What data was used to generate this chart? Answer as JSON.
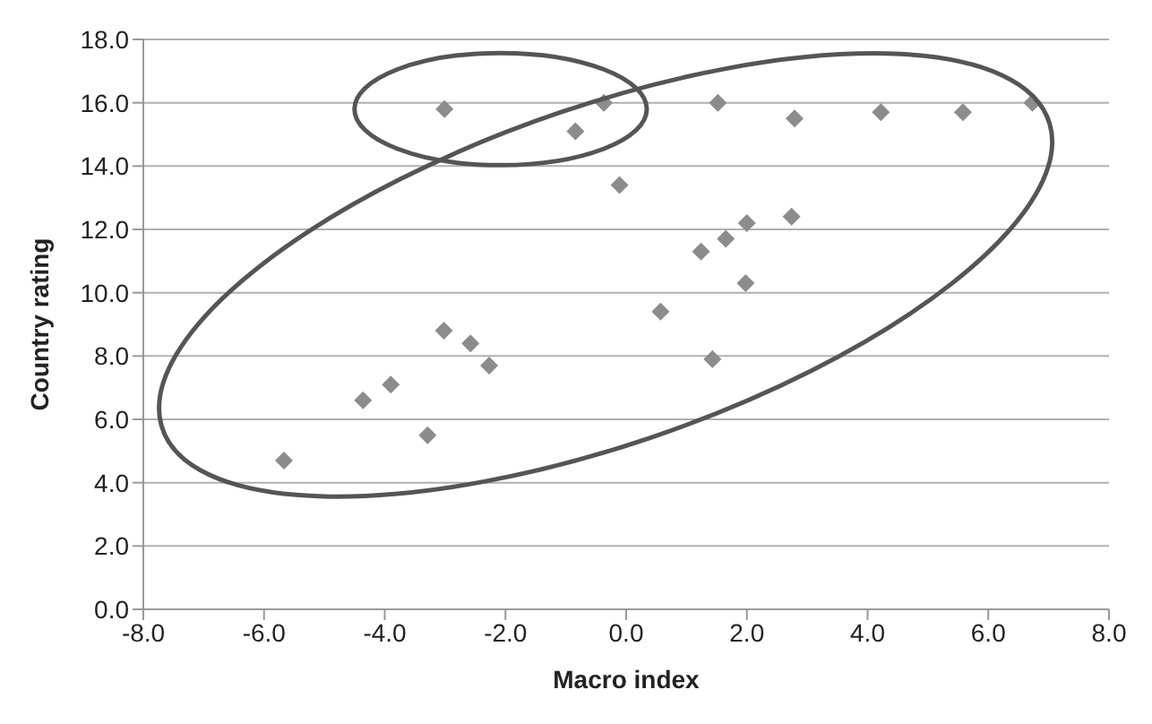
{
  "chart_data": {
    "type": "scatter",
    "xlabel": "Macro index",
    "ylabel": "Country rating",
    "xlim": [
      -8,
      8
    ],
    "ylim": [
      0,
      18
    ],
    "xticks": [
      {
        "value": -8,
        "label": "-8.0"
      },
      {
        "value": -6,
        "label": "-6.0"
      },
      {
        "value": -4,
        "label": "-4.0"
      },
      {
        "value": -2,
        "label": "-2.0"
      },
      {
        "value": 0,
        "label": "0.0"
      },
      {
        "value": 2,
        "label": "2.0"
      },
      {
        "value": 4,
        "label": "4.0"
      },
      {
        "value": 6,
        "label": "6.0"
      },
      {
        "value": 8,
        "label": "8.0"
      }
    ],
    "yticks": [
      {
        "value": 0,
        "label": "0.0"
      },
      {
        "value": 2,
        "label": "2.0"
      },
      {
        "value": 4,
        "label": "4.0"
      },
      {
        "value": 6,
        "label": "6.0"
      },
      {
        "value": 8,
        "label": "8.0"
      },
      {
        "value": 10,
        "label": "10.0"
      },
      {
        "value": 12,
        "label": "12.0"
      },
      {
        "value": 14,
        "label": "14.0"
      },
      {
        "value": 16,
        "label": "16.0"
      },
      {
        "value": 18,
        "label": "18.0"
      }
    ],
    "grid": "y",
    "marker": "diamond",
    "series": [
      {
        "color": "#8c8c8c",
        "x": [
          -5.67,
          -4.36,
          -3.9,
          -3.29,
          -3.02,
          -2.58,
          -2.27,
          -3.01,
          -0.84,
          -0.37,
          -0.11,
          1.52,
          2.79,
          4.22,
          5.58,
          6.73,
          2.74,
          2.0,
          1.65,
          1.24,
          1.98,
          0.57,
          1.43
        ],
        "values": [
          4.7,
          6.6,
          7.1,
          5.5,
          8.8,
          8.4,
          7.7,
          15.8,
          15.1,
          16.0,
          13.4,
          16.0,
          15.5,
          15.7,
          15.7,
          16.0,
          12.4,
          12.2,
          11.7,
          11.3,
          10.3,
          9.4,
          7.9
        ]
      }
    ]
  }
}
